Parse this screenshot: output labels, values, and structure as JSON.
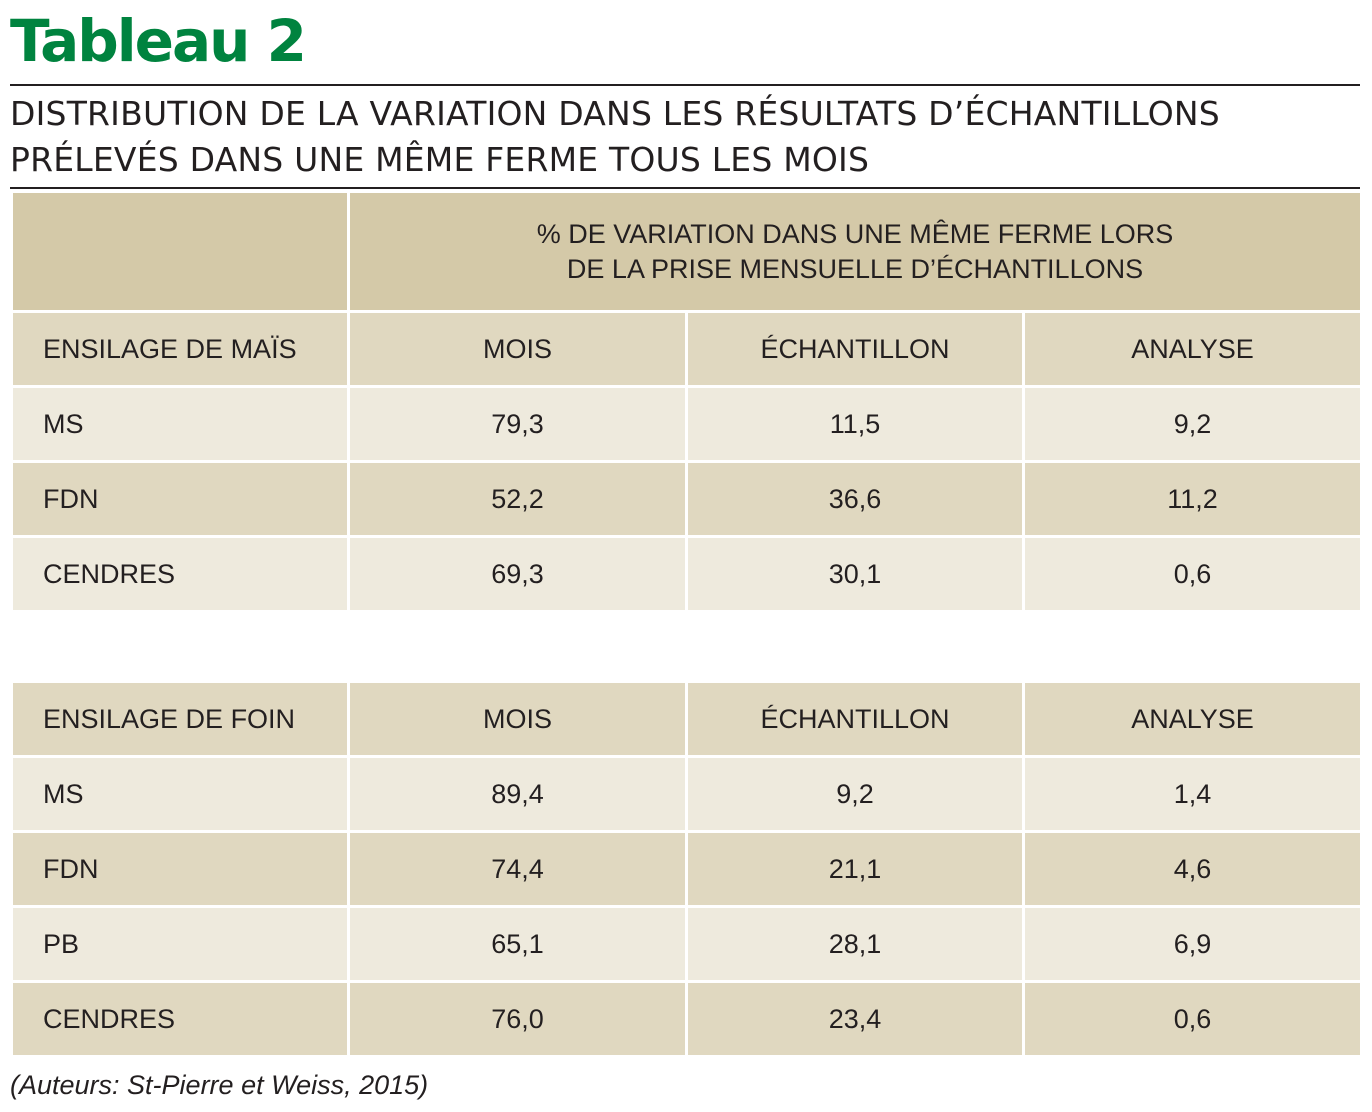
{
  "title": "Tableau 2",
  "subtitle": {
    "line1": "DISTRIBUTION DE LA VARIATION DANS LES RÉSULTATS D’ÉCHANTILLONS",
    "line2": "PRÉLEVÉS DANS UNE MÊME FERME TOUS LES MOIS"
  },
  "super_header": {
    "line1": "% DE VARIATION DANS UNE MÊME FERME LORS",
    "line2": "DE LA PRISE MENSUELLE D’ÉCHANTILLONS"
  },
  "columns": [
    "MOIS",
    "ÉCHANTILLON",
    "ANALYSE"
  ],
  "tables": [
    {
      "heading": "ENSILAGE DE MAÏS",
      "rows": [
        {
          "label": "MS",
          "values": [
            "79,3",
            "11,5",
            "9,2"
          ]
        },
        {
          "label": "FDN",
          "values": [
            "52,2",
            "36,6",
            "11,2"
          ]
        },
        {
          "label": "CENDRES",
          "values": [
            "69,3",
            "30,1",
            "0,6"
          ]
        }
      ]
    },
    {
      "heading": "ENSILAGE DE FOIN",
      "rows": [
        {
          "label": "MS",
          "values": [
            "89,4",
            "9,2",
            "1,4"
          ]
        },
        {
          "label": "FDN",
          "values": [
            "74,4",
            "21,1",
            "4,6"
          ]
        },
        {
          "label": "PB",
          "values": [
            "65,1",
            "28,1",
            "6,9"
          ]
        },
        {
          "label": "CENDRES",
          "values": [
            "76,0",
            "23,4",
            "0,6"
          ]
        }
      ]
    }
  ],
  "source": "(Auteurs: St-Pierre et Weiss, 2015)",
  "colors": {
    "title": "#00833f",
    "header": "#d4c9a8",
    "row_light": "#eeeadd",
    "row_dark": "#e0d8c0"
  }
}
